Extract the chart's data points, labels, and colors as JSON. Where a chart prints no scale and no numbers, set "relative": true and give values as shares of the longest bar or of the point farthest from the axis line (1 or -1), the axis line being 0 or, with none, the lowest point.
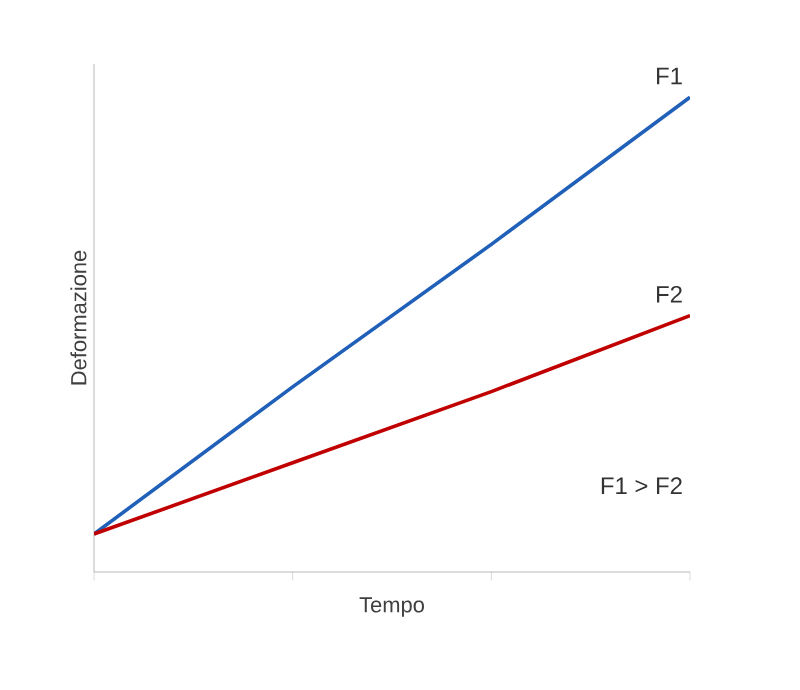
{
  "chart_data": {
    "type": "line",
    "relative": true,
    "xlabel": "Tempo",
    "ylabel": "Deformazione",
    "categories": [
      null,
      null,
      null,
      null
    ],
    "series": [
      {
        "name": "F1",
        "color": "#2060b8",
        "values": [
          0.08,
          0.39,
          0.69,
          1.0
        ]
      },
      {
        "name": "F2",
        "color": "#c00000",
        "values": [
          0.08,
          0.23,
          0.38,
          0.54
        ]
      }
    ],
    "annotations": [
      "F1 > F2"
    ]
  }
}
